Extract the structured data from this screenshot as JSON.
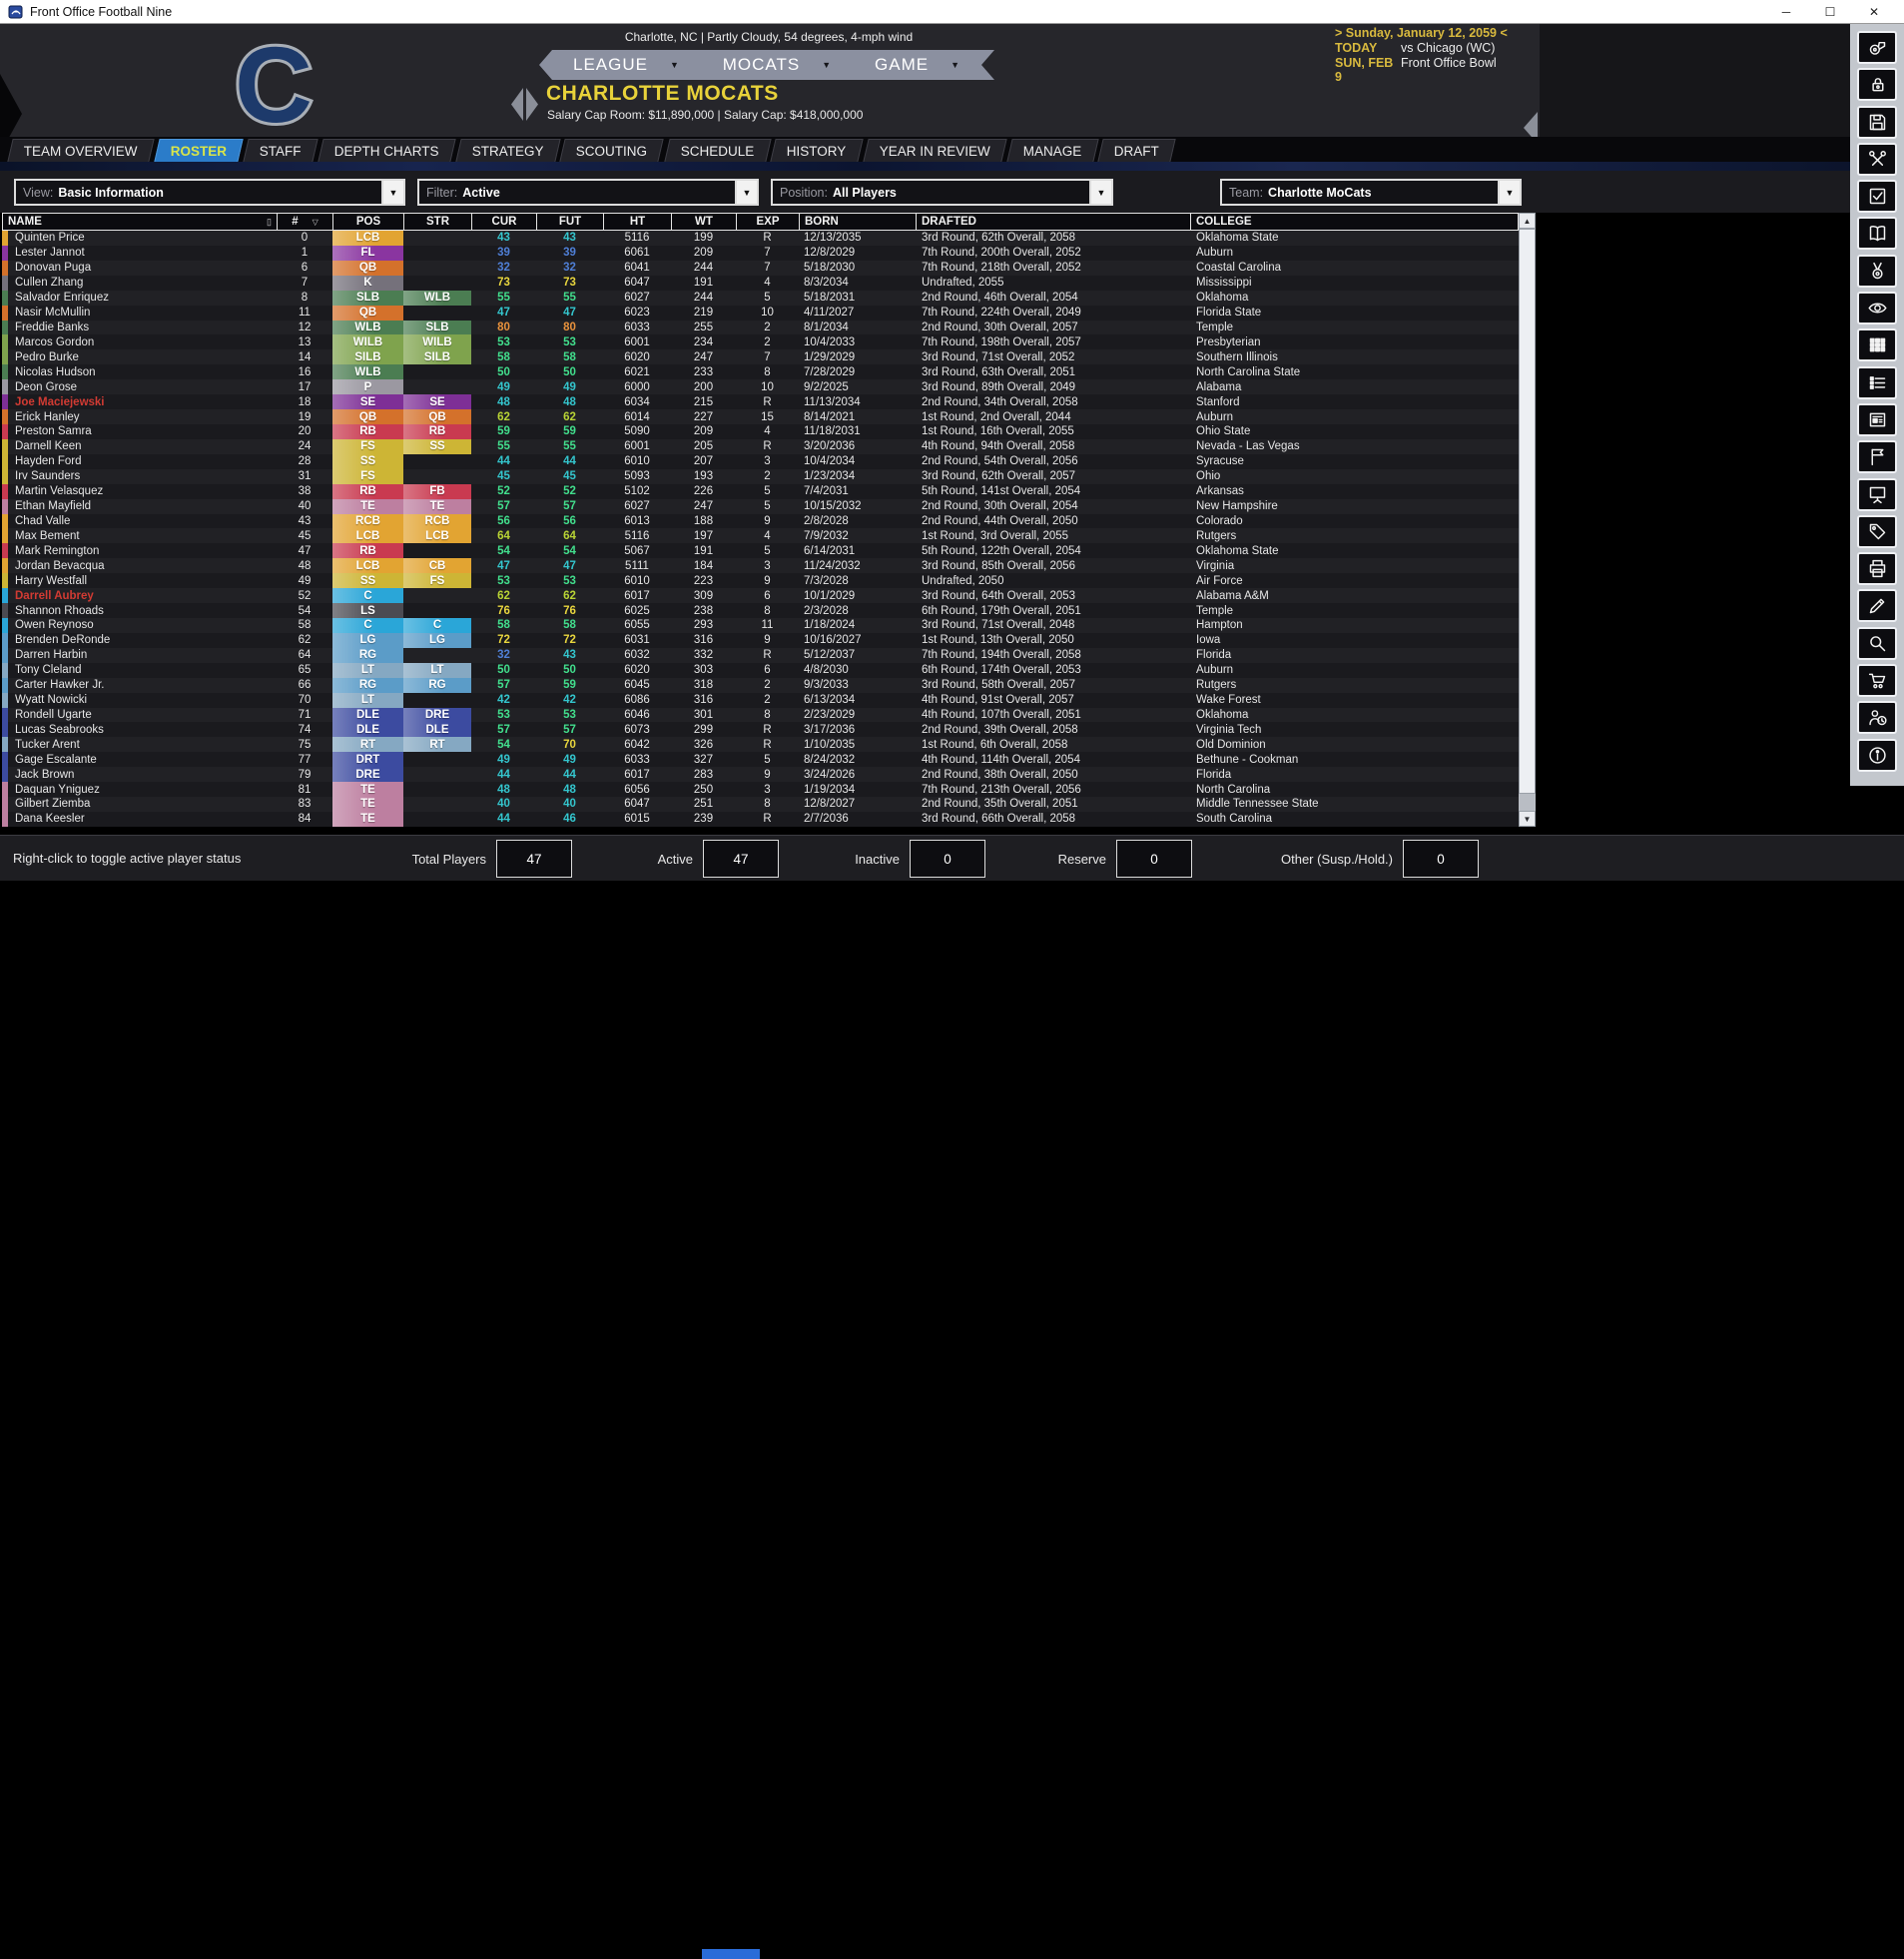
{
  "window": {
    "title": "Front Office Football Nine",
    "controls": [
      {
        "id": "minimize-button",
        "glyph": "─"
      },
      {
        "id": "maximize-button",
        "glyph": "☐"
      },
      {
        "id": "close-button",
        "glyph": "✕"
      }
    ]
  },
  "header": {
    "logo_letter": "C",
    "weather": "Charlotte, NC | Partly Cloudy, 54 degrees, 4-mph wind",
    "menus": [
      {
        "id": "league-menu",
        "label": "LEAGUE"
      },
      {
        "id": "mocats-menu",
        "label": "MOCATS"
      },
      {
        "id": "game-menu",
        "label": "GAME"
      }
    ],
    "date_line": "> Sunday, January 12, 2059 <",
    "schedule": [
      {
        "label": "TODAY",
        "event": "vs Chicago (WC)"
      },
      {
        "label": "SUN, FEB 9",
        "event": "Front Office Bowl"
      }
    ],
    "team_name": "CHARLOTTE MOCATS",
    "salary_line": "Salary Cap Room: $11,890,000   |   Salary Cap: $418,000,000"
  },
  "tabs": [
    {
      "label": "TEAM OVERVIEW"
    },
    {
      "label": "ROSTER",
      "active": true
    },
    {
      "label": "STAFF"
    },
    {
      "label": "DEPTH CHARTS"
    },
    {
      "label": "STRATEGY"
    },
    {
      "label": "SCOUTING"
    },
    {
      "label": "SCHEDULE"
    },
    {
      "label": "HISTORY"
    },
    {
      "label": "YEAR IN REVIEW"
    },
    {
      "label": "MANAGE"
    },
    {
      "label": "DRAFT"
    }
  ],
  "filters": [
    {
      "id": "view",
      "label": "View:",
      "value": "Basic Information"
    },
    {
      "id": "filter",
      "label": "Filter:",
      "value": "Active"
    },
    {
      "id": "position",
      "label": "Position:",
      "value": "All Players"
    },
    {
      "id": "team",
      "label": "Team:",
      "value": "Charlotte MoCats"
    }
  ],
  "table": {
    "name_resize_glyph": "▯",
    "sort_glyph": "▽",
    "columns": [
      {
        "key": "name",
        "label": "NAME"
      },
      {
        "key": "num",
        "label": "#"
      },
      {
        "key": "pos",
        "label": "POS"
      },
      {
        "key": "str",
        "label": "STR"
      },
      {
        "key": "cur",
        "label": "CUR"
      },
      {
        "key": "fut",
        "label": "FUT"
      },
      {
        "key": "ht",
        "label": "HT"
      },
      {
        "key": "wt",
        "label": "WT"
      },
      {
        "key": "exp",
        "label": "EXP"
      },
      {
        "key": "born",
        "label": "BORN"
      },
      {
        "key": "drafted",
        "label": "DRAFTED"
      },
      {
        "key": "college",
        "label": "COLLEGE"
      }
    ],
    "rows": [
      {
        "name": "Quinten Price",
        "num": "0",
        "pos": "LCB",
        "str": "",
        "cur": 43,
        "fut": 43,
        "ht": "5116",
        "wt": "199",
        "exp": "R",
        "born": "12/13/2035",
        "drafted": "3rd Round, 62th Overall, 2058",
        "college": "Oklahoma State"
      },
      {
        "name": "Lester Jannot",
        "num": "1",
        "pos": "FL",
        "str": "",
        "cur": 39,
        "fut": 39,
        "ht": "6061",
        "wt": "209",
        "exp": "7",
        "born": "12/8/2029",
        "drafted": "7th Round, 200th Overall, 2052",
        "college": "Auburn"
      },
      {
        "name": "Donovan Puga",
        "num": "6",
        "pos": "QB",
        "str": "",
        "cur": 32,
        "fut": 32,
        "ht": "6041",
        "wt": "244",
        "exp": "7",
        "born": "5/18/2030",
        "drafted": "7th Round, 218th Overall, 2052",
        "college": "Coastal Carolina"
      },
      {
        "name": "Cullen Zhang",
        "num": "7",
        "pos": "K",
        "str": "",
        "cur": 73,
        "fut": 73,
        "ht": "6047",
        "wt": "191",
        "exp": "4",
        "born": "8/3/2034",
        "drafted": "Undrafted, 2055",
        "college": "Mississippi"
      },
      {
        "name": "Salvador Enriquez",
        "num": "8",
        "pos": "SLB",
        "str": "WLB",
        "cur": 55,
        "fut": 55,
        "ht": "6027",
        "wt": "244",
        "exp": "5",
        "born": "5/18/2031",
        "drafted": "2nd Round, 46th Overall, 2054",
        "college": "Oklahoma"
      },
      {
        "name": "Nasir McMullin",
        "num": "11",
        "pos": "QB",
        "str": "",
        "cur": 47,
        "fut": 47,
        "ht": "6023",
        "wt": "219",
        "exp": "10",
        "born": "4/11/2027",
        "drafted": "7th Round, 224th Overall, 2049",
        "college": "Florida State"
      },
      {
        "name": "Freddie Banks",
        "num": "12",
        "pos": "WLB",
        "str": "SLB",
        "cur": 80,
        "fut": 80,
        "ht": "6033",
        "wt": "255",
        "exp": "2",
        "born": "8/1/2034",
        "drafted": "2nd Round, 30th Overall, 2057",
        "college": "Temple"
      },
      {
        "name": "Marcos Gordon",
        "num": "13",
        "pos": "WILB",
        "str": "WILB",
        "cur": 53,
        "fut": 53,
        "ht": "6001",
        "wt": "234",
        "exp": "2",
        "born": "10/4/2033",
        "drafted": "7th Round, 198th Overall, 2057",
        "college": "Presbyterian"
      },
      {
        "name": "Pedro Burke",
        "num": "14",
        "pos": "SILB",
        "str": "SILB",
        "cur": 58,
        "fut": 58,
        "ht": "6020",
        "wt": "247",
        "exp": "7",
        "born": "1/29/2029",
        "drafted": "3rd Round, 71st Overall, 2052",
        "college": "Southern Illinois"
      },
      {
        "name": "Nicolas Hudson",
        "num": "16",
        "pos": "WLB",
        "str": "",
        "cur": 50,
        "fut": 50,
        "ht": "6021",
        "wt": "233",
        "exp": "8",
        "born": "7/28/2029",
        "drafted": "3rd Round, 63th Overall, 2051",
        "college": "North Carolina State"
      },
      {
        "name": "Deon Grose",
        "num": "17",
        "pos": "P",
        "str": "",
        "cur": 49,
        "fut": 49,
        "ht": "6000",
        "wt": "200",
        "exp": "10",
        "born": "9/2/2025",
        "drafted": "3rd Round, 89th Overall, 2049",
        "college": "Alabama"
      },
      {
        "name": "Joe Maciejewski",
        "num": "18",
        "pos": "SE",
        "str": "SE",
        "cur": 48,
        "fut": 48,
        "ht": "6034",
        "wt": "215",
        "exp": "R",
        "born": "11/13/2034",
        "drafted": "2nd Round, 34th Overall, 2058",
        "college": "Stanford",
        "alert": true
      },
      {
        "name": "Erick Hanley",
        "num": "19",
        "pos": "QB",
        "str": "QB",
        "cur": 62,
        "fut": 62,
        "ht": "6014",
        "wt": "227",
        "exp": "15",
        "born": "8/14/2021",
        "drafted": "1st Round, 2nd Overall, 2044",
        "college": "Auburn"
      },
      {
        "name": "Preston Samra",
        "num": "20",
        "pos": "RB",
        "str": "RB",
        "cur": 59,
        "fut": 59,
        "ht": "5090",
        "wt": "209",
        "exp": "4",
        "born": "11/18/2031",
        "drafted": "1st Round, 16th Overall, 2055",
        "college": "Ohio State"
      },
      {
        "name": "Darnell Keen",
        "num": "24",
        "pos": "FS",
        "str": "SS",
        "cur": 55,
        "fut": 55,
        "ht": "6001",
        "wt": "205",
        "exp": "R",
        "born": "3/20/2036",
        "drafted": "4th Round, 94th Overall, 2058",
        "college": "Nevada - Las Vegas"
      },
      {
        "name": "Hayden Ford",
        "num": "28",
        "pos": "SS",
        "str": "",
        "cur": 44,
        "fut": 44,
        "ht": "6010",
        "wt": "207",
        "exp": "3",
        "born": "10/4/2034",
        "drafted": "2nd Round, 54th Overall, 2056",
        "college": "Syracuse"
      },
      {
        "name": "Irv Saunders",
        "num": "31",
        "pos": "FS",
        "str": "",
        "cur": 45,
        "fut": 45,
        "ht": "5093",
        "wt": "193",
        "exp": "2",
        "born": "1/23/2034",
        "drafted": "3rd Round, 62th Overall, 2057",
        "college": "Ohio"
      },
      {
        "name": "Martin Velasquez",
        "num": "38",
        "pos": "RB",
        "str": "FB",
        "cur": 52,
        "fut": 52,
        "ht": "5102",
        "wt": "226",
        "exp": "5",
        "born": "7/4/2031",
        "drafted": "5th Round, 141st Overall, 2054",
        "college": "Arkansas"
      },
      {
        "name": "Ethan Mayfield",
        "num": "40",
        "pos": "TE",
        "str": "TE",
        "cur": 57,
        "fut": 57,
        "ht": "6027",
        "wt": "247",
        "exp": "5",
        "born": "10/15/2032",
        "drafted": "2nd Round, 30th Overall, 2054",
        "college": "New Hampshire"
      },
      {
        "name": "Chad Valle",
        "num": "43",
        "pos": "RCB",
        "str": "RCB",
        "cur": 56,
        "fut": 56,
        "ht": "6013",
        "wt": "188",
        "exp": "9",
        "born": "2/8/2028",
        "drafted": "2nd Round, 44th Overall, 2050",
        "college": "Colorado"
      },
      {
        "name": "Max Bement",
        "num": "45",
        "pos": "LCB",
        "str": "LCB",
        "cur": 64,
        "fut": 64,
        "ht": "5116",
        "wt": "197",
        "exp": "4",
        "born": "7/9/2032",
        "drafted": "1st Round, 3rd Overall, 2055",
        "college": "Rutgers"
      },
      {
        "name": "Mark Remington",
        "num": "47",
        "pos": "RB",
        "str": "",
        "cur": 54,
        "fut": 54,
        "ht": "5067",
        "wt": "191",
        "exp": "5",
        "born": "6/14/2031",
        "drafted": "5th Round, 122th Overall, 2054",
        "college": "Oklahoma State"
      },
      {
        "name": "Jordan Bevacqua",
        "num": "48",
        "pos": "LCB",
        "str": "CB",
        "cur": 47,
        "fut": 47,
        "ht": "5111",
        "wt": "184",
        "exp": "3",
        "born": "11/24/2032",
        "drafted": "3rd Round, 85th Overall, 2056",
        "college": "Virginia"
      },
      {
        "name": "Harry Westfall",
        "num": "49",
        "pos": "SS",
        "str": "FS",
        "cur": 53,
        "fut": 53,
        "ht": "6010",
        "wt": "223",
        "exp": "9",
        "born": "7/3/2028",
        "drafted": "Undrafted, 2050",
        "college": "Air Force"
      },
      {
        "name": "Darrell Aubrey",
        "num": "52",
        "pos": "C",
        "str": "",
        "cur": 62,
        "fut": 62,
        "ht": "6017",
        "wt": "309",
        "exp": "6",
        "born": "10/1/2029",
        "drafted": "3rd Round, 64th Overall, 2053",
        "college": "Alabama A&M",
        "alert": true
      },
      {
        "name": "Shannon Rhoads",
        "num": "54",
        "pos": "LS",
        "str": "",
        "cur": 76,
        "fut": 76,
        "ht": "6025",
        "wt": "238",
        "exp": "8",
        "born": "2/3/2028",
        "drafted": "6th Round, 179th Overall, 2051",
        "college": "Temple"
      },
      {
        "name": "Owen Reynoso",
        "num": "58",
        "pos": "C",
        "str": "C",
        "cur": 58,
        "fut": 58,
        "ht": "6055",
        "wt": "293",
        "exp": "11",
        "born": "1/18/2024",
        "drafted": "3rd Round, 71st Overall, 2048",
        "college": "Hampton"
      },
      {
        "name": "Brenden DeRonde",
        "num": "62",
        "pos": "LG",
        "str": "LG",
        "cur": 72,
        "fut": 72,
        "ht": "6031",
        "wt": "316",
        "exp": "9",
        "born": "10/16/2027",
        "drafted": "1st Round, 13th Overall, 2050",
        "college": "Iowa"
      },
      {
        "name": "Darren Harbin",
        "num": "64",
        "pos": "RG",
        "str": "",
        "cur": 32,
        "fut": 43,
        "ht": "6032",
        "wt": "332",
        "exp": "R",
        "born": "5/12/2037",
        "drafted": "7th Round, 194th Overall, 2058",
        "college": "Florida"
      },
      {
        "name": "Tony Cleland",
        "num": "65",
        "pos": "LT",
        "str": "LT",
        "cur": 50,
        "fut": 50,
        "ht": "6020",
        "wt": "303",
        "exp": "6",
        "born": "4/8/2030",
        "drafted": "6th Round, 174th Overall, 2053",
        "college": "Auburn"
      },
      {
        "name": "Carter Hawker Jr.",
        "num": "66",
        "pos": "RG",
        "str": "RG",
        "cur": 57,
        "fut": 59,
        "ht": "6045",
        "wt": "318",
        "exp": "2",
        "born": "9/3/2033",
        "drafted": "3rd Round, 58th Overall, 2057",
        "college": "Rutgers"
      },
      {
        "name": "Wyatt Nowicki",
        "num": "70",
        "pos": "LT",
        "str": "",
        "cur": 42,
        "fut": 42,
        "ht": "6086",
        "wt": "316",
        "exp": "2",
        "born": "6/13/2034",
        "drafted": "4th Round, 91st Overall, 2057",
        "college": "Wake Forest"
      },
      {
        "name": "Rondell Ugarte",
        "num": "71",
        "pos": "DLE",
        "str": "DRE",
        "cur": 53,
        "fut": 53,
        "ht": "6046",
        "wt": "301",
        "exp": "8",
        "born": "2/23/2029",
        "drafted": "4th Round, 107th Overall, 2051",
        "college": "Oklahoma"
      },
      {
        "name": "Lucas Seabrooks",
        "num": "74",
        "pos": "DLE",
        "str": "DLE",
        "cur": 57,
        "fut": 57,
        "ht": "6073",
        "wt": "299",
        "exp": "R",
        "born": "3/17/2036",
        "drafted": "2nd Round, 39th Overall, 2058",
        "college": "Virginia Tech"
      },
      {
        "name": "Tucker Arent",
        "num": "75",
        "pos": "RT",
        "str": "RT",
        "cur": 54,
        "fut": 70,
        "ht": "6042",
        "wt": "326",
        "exp": "R",
        "born": "1/10/2035",
        "drafted": "1st Round, 6th Overall, 2058",
        "college": "Old Dominion"
      },
      {
        "name": "Gage Escalante",
        "num": "77",
        "pos": "DRT",
        "str": "",
        "cur": 49,
        "fut": 49,
        "ht": "6033",
        "wt": "327",
        "exp": "5",
        "born": "8/24/2032",
        "drafted": "4th Round, 114th Overall, 2054",
        "college": "Bethune - Cookman"
      },
      {
        "name": "Jack Brown",
        "num": "79",
        "pos": "DRE",
        "str": "",
        "cur": 44,
        "fut": 44,
        "ht": "6017",
        "wt": "283",
        "exp": "9",
        "born": "3/24/2026",
        "drafted": "2nd Round, 38th Overall, 2050",
        "college": "Florida"
      },
      {
        "name": "Daquan Yniguez",
        "num": "81",
        "pos": "TE",
        "str": "",
        "cur": 48,
        "fut": 48,
        "ht": "6056",
        "wt": "250",
        "exp": "3",
        "born": "1/19/2034",
        "drafted": "7th Round, 213th Overall, 2056",
        "college": "North Carolina"
      },
      {
        "name": "Gilbert Ziemba",
        "num": "83",
        "pos": "TE",
        "str": "",
        "cur": 40,
        "fut": 40,
        "ht": "6047",
        "wt": "251",
        "exp": "8",
        "born": "12/8/2027",
        "drafted": "2nd Round, 35th Overall, 2051",
        "college": "Middle Tennessee State"
      },
      {
        "name": "Dana Keesler",
        "num": "84",
        "pos": "TE",
        "str": "",
        "cur": 44,
        "fut": 46,
        "ht": "6015",
        "wt": "239",
        "exp": "R",
        "born": "2/7/2036",
        "drafted": "3rd Round, 66th Overall, 2058",
        "college": "South Carolina"
      }
    ]
  },
  "footer": {
    "hint": "Right-click to toggle active player status",
    "stats": [
      {
        "id": "total-players",
        "label": "Total Players",
        "value": "47"
      },
      {
        "id": "active",
        "label": "Active",
        "value": "47"
      },
      {
        "id": "inactive",
        "label": "Inactive",
        "value": "0"
      },
      {
        "id": "reserve",
        "label": "Reserve",
        "value": "0"
      },
      {
        "id": "other",
        "label": "Other (Susp./Hold.)",
        "value": "0"
      }
    ]
  },
  "sidebar": {
    "icons": [
      "whistle-icon",
      "cap-lock-icon",
      "save-icon",
      "tools-icon",
      "checklist-icon",
      "playbook-icon",
      "medal-icon",
      "eye-icon",
      "grid-icon",
      "list-icon",
      "news-icon",
      "flag-icon",
      "whiteboard-icon",
      "price-tag-icon",
      "printer-icon",
      "pencil-icon",
      "search-icon",
      "cart-icon",
      "person-clock-icon",
      "info-icon"
    ]
  },
  "colors": {
    "tab_active_bg": "#2b7cc9",
    "tab_active_text": "#d9e54a",
    "team_yellow": "#e8d23a",
    "date_gold": "#d8b93e",
    "alert_red": "#d23b33",
    "rating": {
      "3": "#4f7fd6",
      "4": "#34c6ce",
      "5": "#42df8d",
      "6": "#b9d435",
      "7": "#e9d63e",
      "8": "#e9923c"
    },
    "positions": {
      "QB": "#d4712b",
      "RB": "#c93a50",
      "FB": "#c93a50",
      "FL": "#8a35a0",
      "SE": "#7e2f96",
      "TE": "#bd7fa0",
      "K": "#75717b",
      "P": "#9b98a1",
      "LS": "#4b4b52",
      "C": "#2aa6d8",
      "LG": "#5b9cc8",
      "RG": "#5b9cc8",
      "LT": "#85a8c2",
      "RT": "#85a8c2",
      "DLE": "#3c4ba0",
      "DRE": "#3c4ba0",
      "DRT": "#3c4ba0",
      "SLB": "#4b7d52",
      "WLB": "#4b7d52",
      "WILB": "#7fa34d",
      "SILB": "#7fa34d",
      "CB": "#e2a432",
      "LCB": "#e2a432",
      "RCB": "#e2a432",
      "FS": "#cdb535",
      "SS": "#cdb535"
    }
  }
}
